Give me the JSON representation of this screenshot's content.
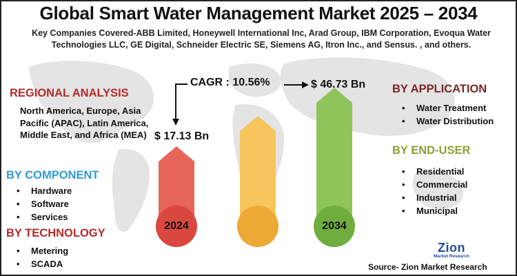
{
  "title": "Global Smart Water Management Market 2025 – 2034",
  "subtitle": "Key Companies Covered-ABB Limited, Honeywell International Inc, Arad Group, IBM Corporation, Evoqua Water Technologies LLC, GE Digital, Schneider Electric SE, Siemens AG, Itron Inc., and Sensus.  , and others.",
  "regional": {
    "heading": "REGIONAL ANALYSIS",
    "text": "North America, Europe, Asia Pacific (APAC), Latin America, Middle East, and Africa (MEA)"
  },
  "component": {
    "heading": "BY COMPONENT",
    "items": [
      "Hardware",
      "Software",
      "Services"
    ]
  },
  "technology": {
    "heading": "BY TECHNOLOGY",
    "items": [
      "Metering",
      "SCADA"
    ]
  },
  "application": {
    "heading": "BY APPLICATION",
    "items": [
      "Water Treatment",
      "Water Distribution"
    ]
  },
  "end_user": {
    "heading": "BY END-USER",
    "items": [
      "Residential",
      "Commercial",
      "Industrial",
      "Municipal"
    ]
  },
  "market": {
    "cagr": "CAGR : 10.56%",
    "start_value": "$ 17.13 Bn",
    "end_value": "$ 46.73 Bn",
    "start_year": "2024",
    "end_year": "2034"
  },
  "colors": {
    "pillar_left": "#e8655a",
    "pillar_middle": "#f6c55b",
    "pillar_right": "#8fc45a",
    "circle_left": "#d9473f",
    "circle_middle": "#eda936",
    "circle_right": "#6fae3e"
  },
  "logo": {
    "name": "Zion",
    "tagline": "Market Research"
  },
  "source": "Source- Zion Market Research"
}
